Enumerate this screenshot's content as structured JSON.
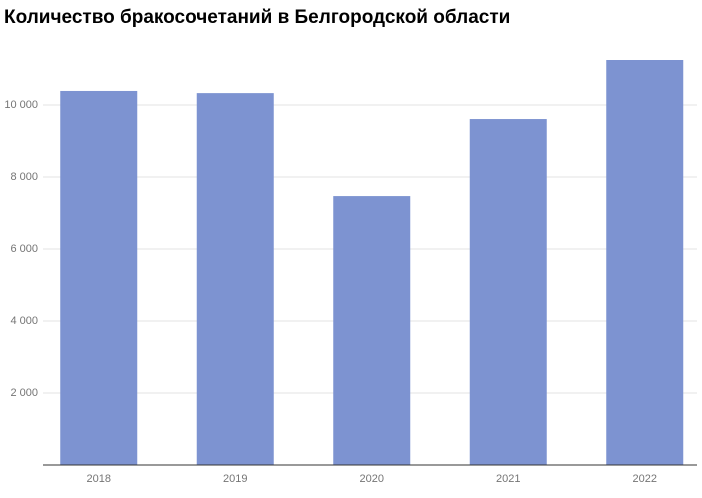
{
  "chart_data": {
    "type": "bar",
    "title": "Количество бракосочетаний в Белгородской области",
    "categories": [
      "2018",
      "2019",
      "2020",
      "2021",
      "2022"
    ],
    "values": [
      10390,
      10330,
      7470,
      9610,
      11250
    ],
    "color": "#7d93d1",
    "ylim": [
      0,
      12000
    ],
    "yticks": [
      {
        "value": 2000,
        "label": "2 000"
      },
      {
        "value": 4000,
        "label": "4 000"
      },
      {
        "value": 6000,
        "label": "6 000"
      },
      {
        "value": 8000,
        "label": "8 000"
      },
      {
        "value": 10000,
        "label": "10 000"
      }
    ],
    "grid": true
  }
}
